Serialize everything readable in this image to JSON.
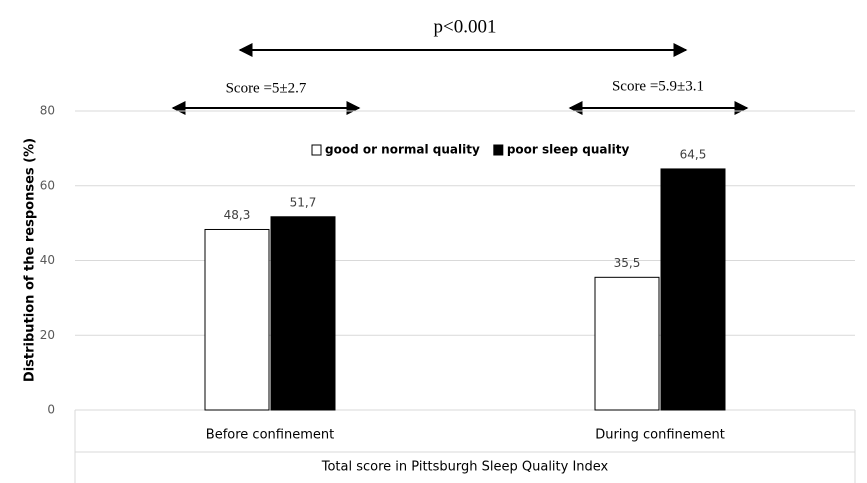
{
  "chart_data": {
    "type": "bar",
    "x_label": "Total score in Pittsburgh Sleep Quality Index",
    "y_label": "Distribution of the responses (%)",
    "annotations": [
      "p<0.001",
      "Score =5±2.7",
      "Score =5.9±3.1"
    ],
    "categories": [
      "Before confinement",
      "During confinement"
    ],
    "series": [
      {
        "name": "good or normal quality",
        "color": "#ffffff",
        "values": [
          48.3,
          35.5
        ],
        "value_labels": [
          "48,3",
          "35,5"
        ]
      },
      {
        "name": "poor sleep quality",
        "color": "#000000",
        "values": [
          51.7,
          64.5
        ],
        "value_labels": [
          "51,7",
          "64,5"
        ]
      }
    ],
    "ylim": [
      0,
      80
    ],
    "yticks": [
      0,
      20,
      40,
      60,
      80
    ],
    "grid": true,
    "legend": "upper center"
  }
}
